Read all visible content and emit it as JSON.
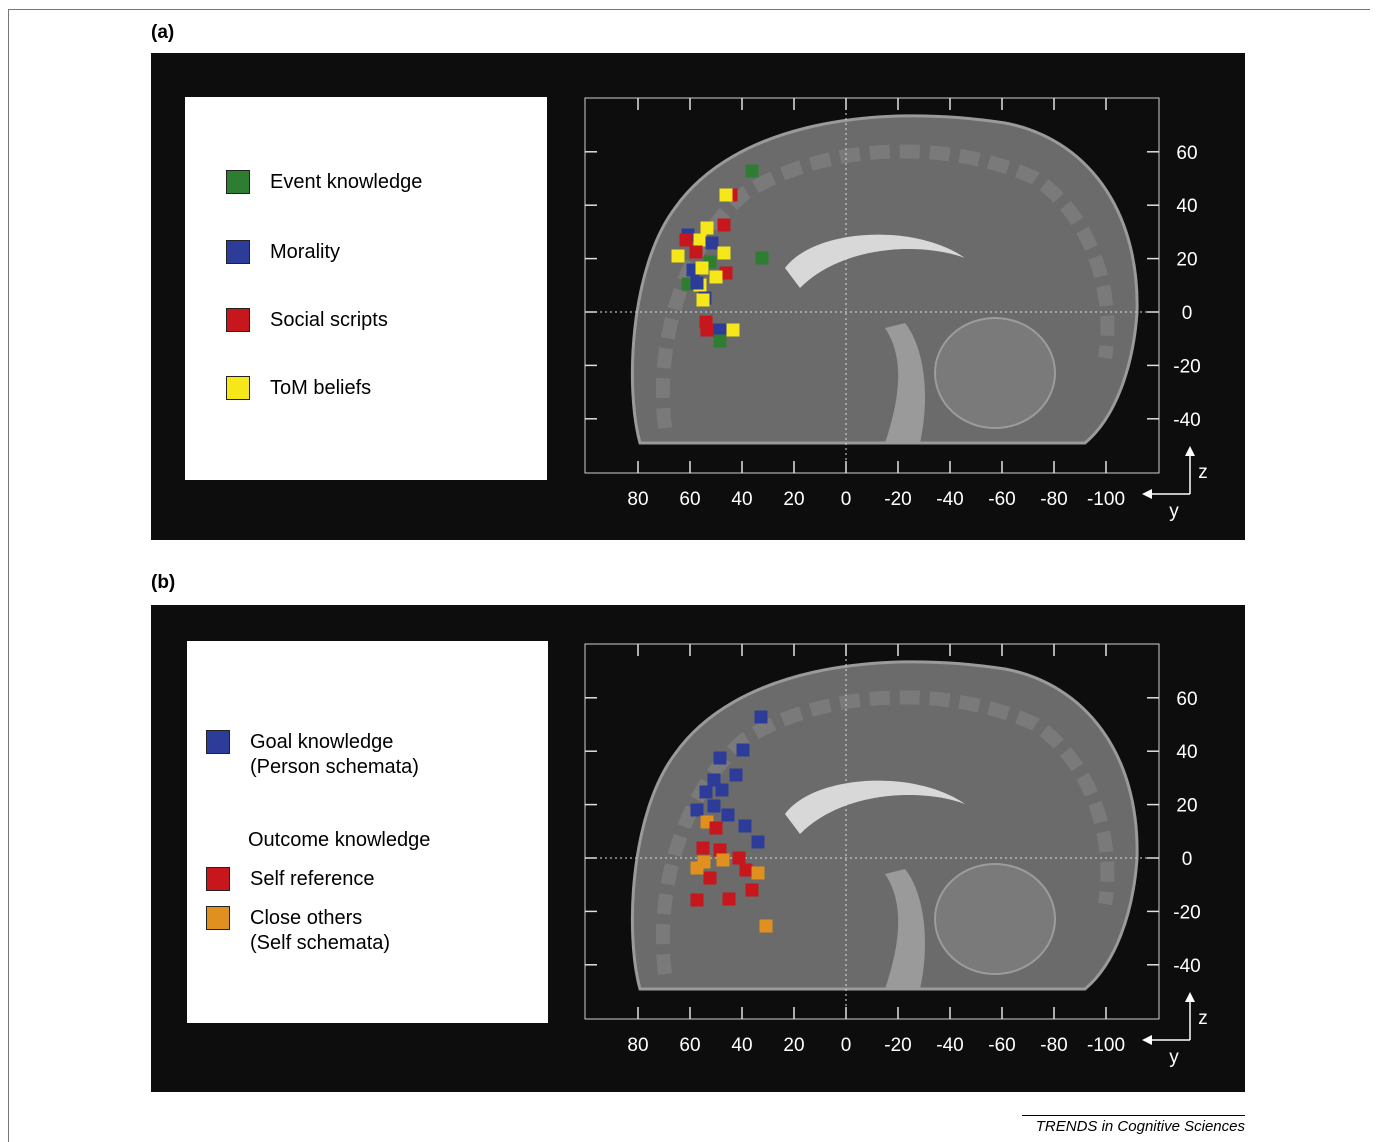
{
  "figure": {
    "footer_credit": "TRENDS in Cognitive Sciences",
    "axes": {
      "y_ticks": [
        80,
        60,
        40,
        20,
        0,
        -20,
        -40,
        -60,
        -80,
        -100
      ],
      "z_ticks": [
        60,
        40,
        20,
        0,
        -20,
        -40
      ],
      "y_axis_letter": "y",
      "z_axis_letter": "z"
    },
    "panels": [
      {
        "label": "(a)",
        "legend": [
          {
            "label": "Event knowledge",
            "color": "#2f7d32"
          },
          {
            "label": "Morality",
            "color": "#2e3c99"
          },
          {
            "label": "Social scripts",
            "color": "#c8161d"
          },
          {
            "label": "ToM beliefs",
            "color": "#f5e71a"
          }
        ]
      },
      {
        "label": "(b)",
        "legend_heading": "Outcome knowledge",
        "legend": [
          {
            "label": "Goal knowledge\n(Person schemata)",
            "color": "#2e3c99"
          },
          {
            "label": "Self reference",
            "color": "#c8161d"
          },
          {
            "label": "Close others\n(Self schemata)",
            "color": "#e0901e"
          }
        ]
      }
    ]
  }
}
